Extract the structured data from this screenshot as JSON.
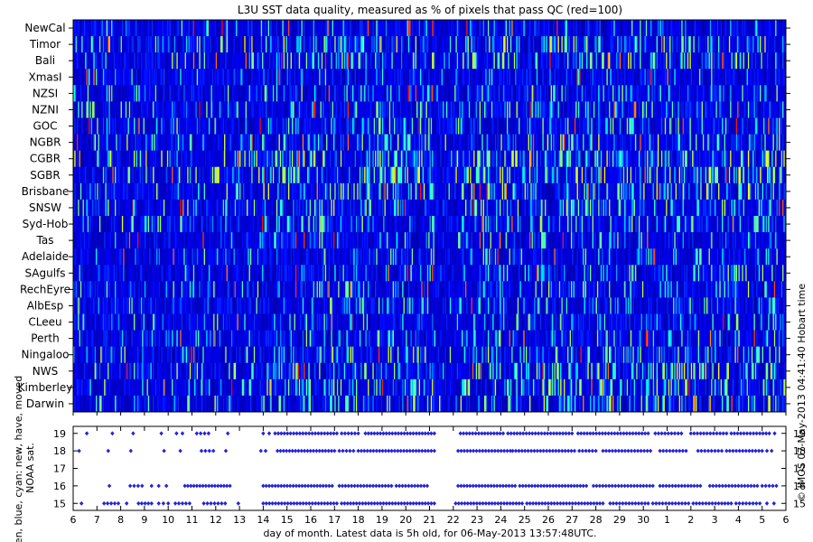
{
  "chart_data": [
    {
      "type": "heatmap",
      "title": "L3U SST data quality, measured as % of pixels that pass QC (red=100)",
      "regions": [
        "NewCal",
        "Timor",
        "Bali",
        "XmasI",
        "NZSI",
        "NZNI",
        "GOC",
        "NGBR",
        "CGBR",
        "SGBR",
        "Brisbane",
        "SNSW",
        "Syd-Hob",
        "Tas",
        "Adelaide",
        "SAgulfs",
        "RechEyre",
        "AlbEsp",
        "CLeeu",
        "Perth",
        "Ningaloo",
        "NWS",
        "Kimberley",
        "Darwin"
      ],
      "x_ticks": [
        "6",
        "7",
        "8",
        "9",
        "10",
        "11",
        "12",
        "13",
        "14",
        "15",
        "16",
        "17",
        "18",
        "19",
        "20",
        "21",
        "22",
        "23",
        "24",
        "25",
        "26",
        "27",
        "28",
        "29",
        "30",
        "1",
        "2",
        "3",
        "4",
        "5",
        "6"
      ],
      "xlim": [
        6,
        36
      ],
      "value_range": [
        0,
        100
      ],
      "colormap": [
        "#00007f",
        "#0000ff",
        "#00ffff",
        "#ffff00",
        "#ff0000"
      ],
      "side_caption": "© IMOS 07-May-2013 04:41:40 Hobart time"
    },
    {
      "type": "scatter",
      "ylabel": "green, blue, cyan: new, have, moved NOAA sat.",
      "xlabel": "day of month. Latest data is 5h old, for 06-May-2013 13:57:48UTC.",
      "y_ticks": [
        "15",
        "16",
        "17",
        "18",
        "19"
      ],
      "ylim": [
        14.6,
        19.4
      ],
      "xlim": [
        6,
        36
      ],
      "x_ticks": [
        "6",
        "7",
        "8",
        "9",
        "10",
        "11",
        "12",
        "13",
        "14",
        "15",
        "16",
        "17",
        "18",
        "19",
        "20",
        "21",
        "22",
        "23",
        "24",
        "25",
        "26",
        "27",
        "28",
        "29",
        "30",
        "1",
        "2",
        "3",
        "4",
        "5",
        "6"
      ],
      "point_color": "#2424d6",
      "series": [
        {
          "satellite": 19,
          "spans": [
            [
              6.55,
              6.6
            ],
            [
              7.6,
              7.7
            ],
            [
              8.5,
              8.55
            ],
            [
              9.7,
              9.72
            ],
            [
              10.35,
              10.6
            ],
            [
              11.2,
              11.7
            ],
            [
              12.5,
              12.52
            ],
            [
              14.0,
              14.25
            ],
            [
              14.5,
              17.1
            ],
            [
              17.3,
              18.0
            ],
            [
              18.3,
              21.2
            ],
            [
              22.3,
              24.1
            ],
            [
              24.3,
              27.0
            ],
            [
              27.25,
              30.2
            ],
            [
              30.5,
              31.6
            ],
            [
              32.0,
              33.5
            ],
            [
              33.7,
              35.3
            ],
            [
              35.45,
              35.6
            ]
          ]
        },
        {
          "satellite": 18,
          "spans": [
            [
              6.2,
              6.3
            ],
            [
              7.45,
              7.5
            ],
            [
              8.4,
              8.45
            ],
            [
              9.8,
              9.85
            ],
            [
              10.5,
              10.52
            ],
            [
              11.4,
              11.9
            ],
            [
              12.4,
              12.45
            ],
            [
              13.9,
              14.1
            ],
            [
              14.6,
              17.0
            ],
            [
              17.2,
              17.8
            ],
            [
              18.0,
              21.2
            ],
            [
              22.2,
              24.4
            ],
            [
              24.5,
              27.1
            ],
            [
              27.3,
              28.0
            ],
            [
              28.3,
              30.3
            ],
            [
              30.7,
              31.8
            ],
            [
              32.3,
              33.3
            ],
            [
              33.5,
              35.0
            ],
            [
              35.2,
              35.4
            ]
          ]
        },
        {
          "satellite": 16,
          "spans": [
            [
              7.5,
              7.55
            ],
            [
              8.4,
              8.9
            ],
            [
              9.3,
              9.6
            ],
            [
              9.85,
              10.0
            ],
            [
              10.7,
              12.6
            ],
            [
              14.0,
              16.9
            ],
            [
              17.2,
              19.4
            ],
            [
              19.6,
              20.9
            ],
            [
              22.2,
              24.6
            ],
            [
              24.8,
              27.6
            ],
            [
              27.9,
              30.4
            ],
            [
              30.7,
              32.4
            ],
            [
              32.8,
              34.8
            ],
            [
              35.0,
              35.6
            ]
          ]
        },
        {
          "satellite": 15,
          "spans": [
            [
              6.3,
              6.4
            ],
            [
              7.3,
              7.9
            ],
            [
              8.2,
              8.3
            ],
            [
              8.75,
              9.3
            ],
            [
              9.6,
              10.0
            ],
            [
              10.3,
              10.9
            ],
            [
              11.5,
              12.4
            ],
            [
              12.9,
              13.0
            ],
            [
              14.0,
              17.1
            ],
            [
              17.3,
              21.2
            ],
            [
              22.1,
              24.9
            ],
            [
              25.1,
              28.3
            ],
            [
              28.6,
              30.2
            ],
            [
              30.4,
              31.9
            ],
            [
              32.1,
              33.7
            ],
            [
              33.9,
              34.9
            ],
            [
              35.2,
              35.5
            ]
          ]
        }
      ]
    }
  ]
}
